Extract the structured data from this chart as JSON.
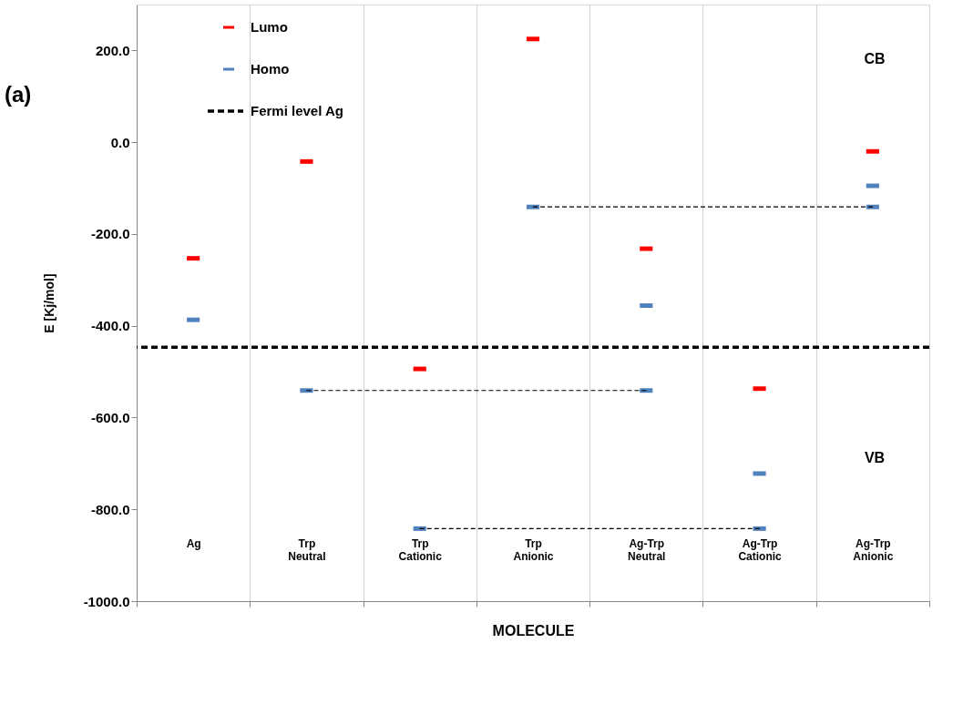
{
  "chart_data": {
    "type": "scatter",
    "xlabel": "MOLECULE",
    "ylabel": "E [Kj/mol]",
    "categories": [
      "Ag",
      "Trp Neutral",
      "Trp Cationic",
      "Trp Anionic",
      "Ag-Trp Neutral",
      "Ag-Trp Cationic",
      "Ag-Trp Anionic"
    ],
    "series": [
      {
        "name": "Lumo",
        "color": "#ff0000",
        "x": [
          "Ag",
          "Trp Neutral",
          "Trp Cationic",
          "Trp Anionic",
          "Ag-Trp Neutral",
          "Ag-Trp Cationic",
          "Ag-Trp Anionic"
        ],
        "values": [
          -253,
          -42,
          -494,
          225,
          -232,
          -537,
          -20
        ]
      },
      {
        "name": "Homo",
        "color": "#4f81bd",
        "x": [
          "Ag",
          "Trp Neutral",
          "Trp Cationic",
          "Trp Anionic",
          "Ag-Trp Neutral",
          "Ag-Trp Neutral",
          "Ag-Trp Cationic",
          "Ag-Trp Cationic",
          "Ag-Trp Anionic",
          "Ag-Trp Anionic"
        ],
        "values": [
          -387,
          -541,
          -842,
          -141,
          -356,
          -541,
          -722,
          -842,
          -95,
          -141
        ]
      },
      {
        "type": "line",
        "color": "#000000",
        "line_style": "dashed",
        "x": [
          "Trp Anionic",
          "Ag-Trp Anionic"
        ],
        "values": [
          -141,
          -141
        ]
      },
      {
        "type": "line",
        "color": "#000000",
        "line_style": "dashed",
        "x": [
          "Trp Neutral",
          "Ag-Trp Neutral"
        ],
        "values": [
          -541,
          -541
        ]
      },
      {
        "type": "line",
        "color": "#000000",
        "line_style": "dashed",
        "x": [
          "Trp Cationic",
          "Ag-Trp Cationic"
        ],
        "values": [
          -842,
          -842
        ]
      }
    ],
    "ylim": [
      -1000,
      300
    ],
    "yticks": [
      {
        "value": 200,
        "label": "200.0"
      },
      {
        "value": 0,
        "label": "0.0"
      },
      {
        "value": -200,
        "label": "-200.0"
      },
      {
        "value": -400,
        "label": "-400.0"
      },
      {
        "value": -600,
        "label": "-600.0"
      },
      {
        "value": -800,
        "label": "-800.0"
      },
      {
        "value": -1000,
        "label": "-1000.0"
      }
    ],
    "ref_lines": [
      {
        "axis": "y",
        "value": -447,
        "label": "Fermi level Ag",
        "color": "#000000",
        "line_style": "dashed"
      }
    ],
    "annotations": [
      "(a)",
      "CB",
      "VB"
    ],
    "grid": "x",
    "legend": "top left"
  }
}
